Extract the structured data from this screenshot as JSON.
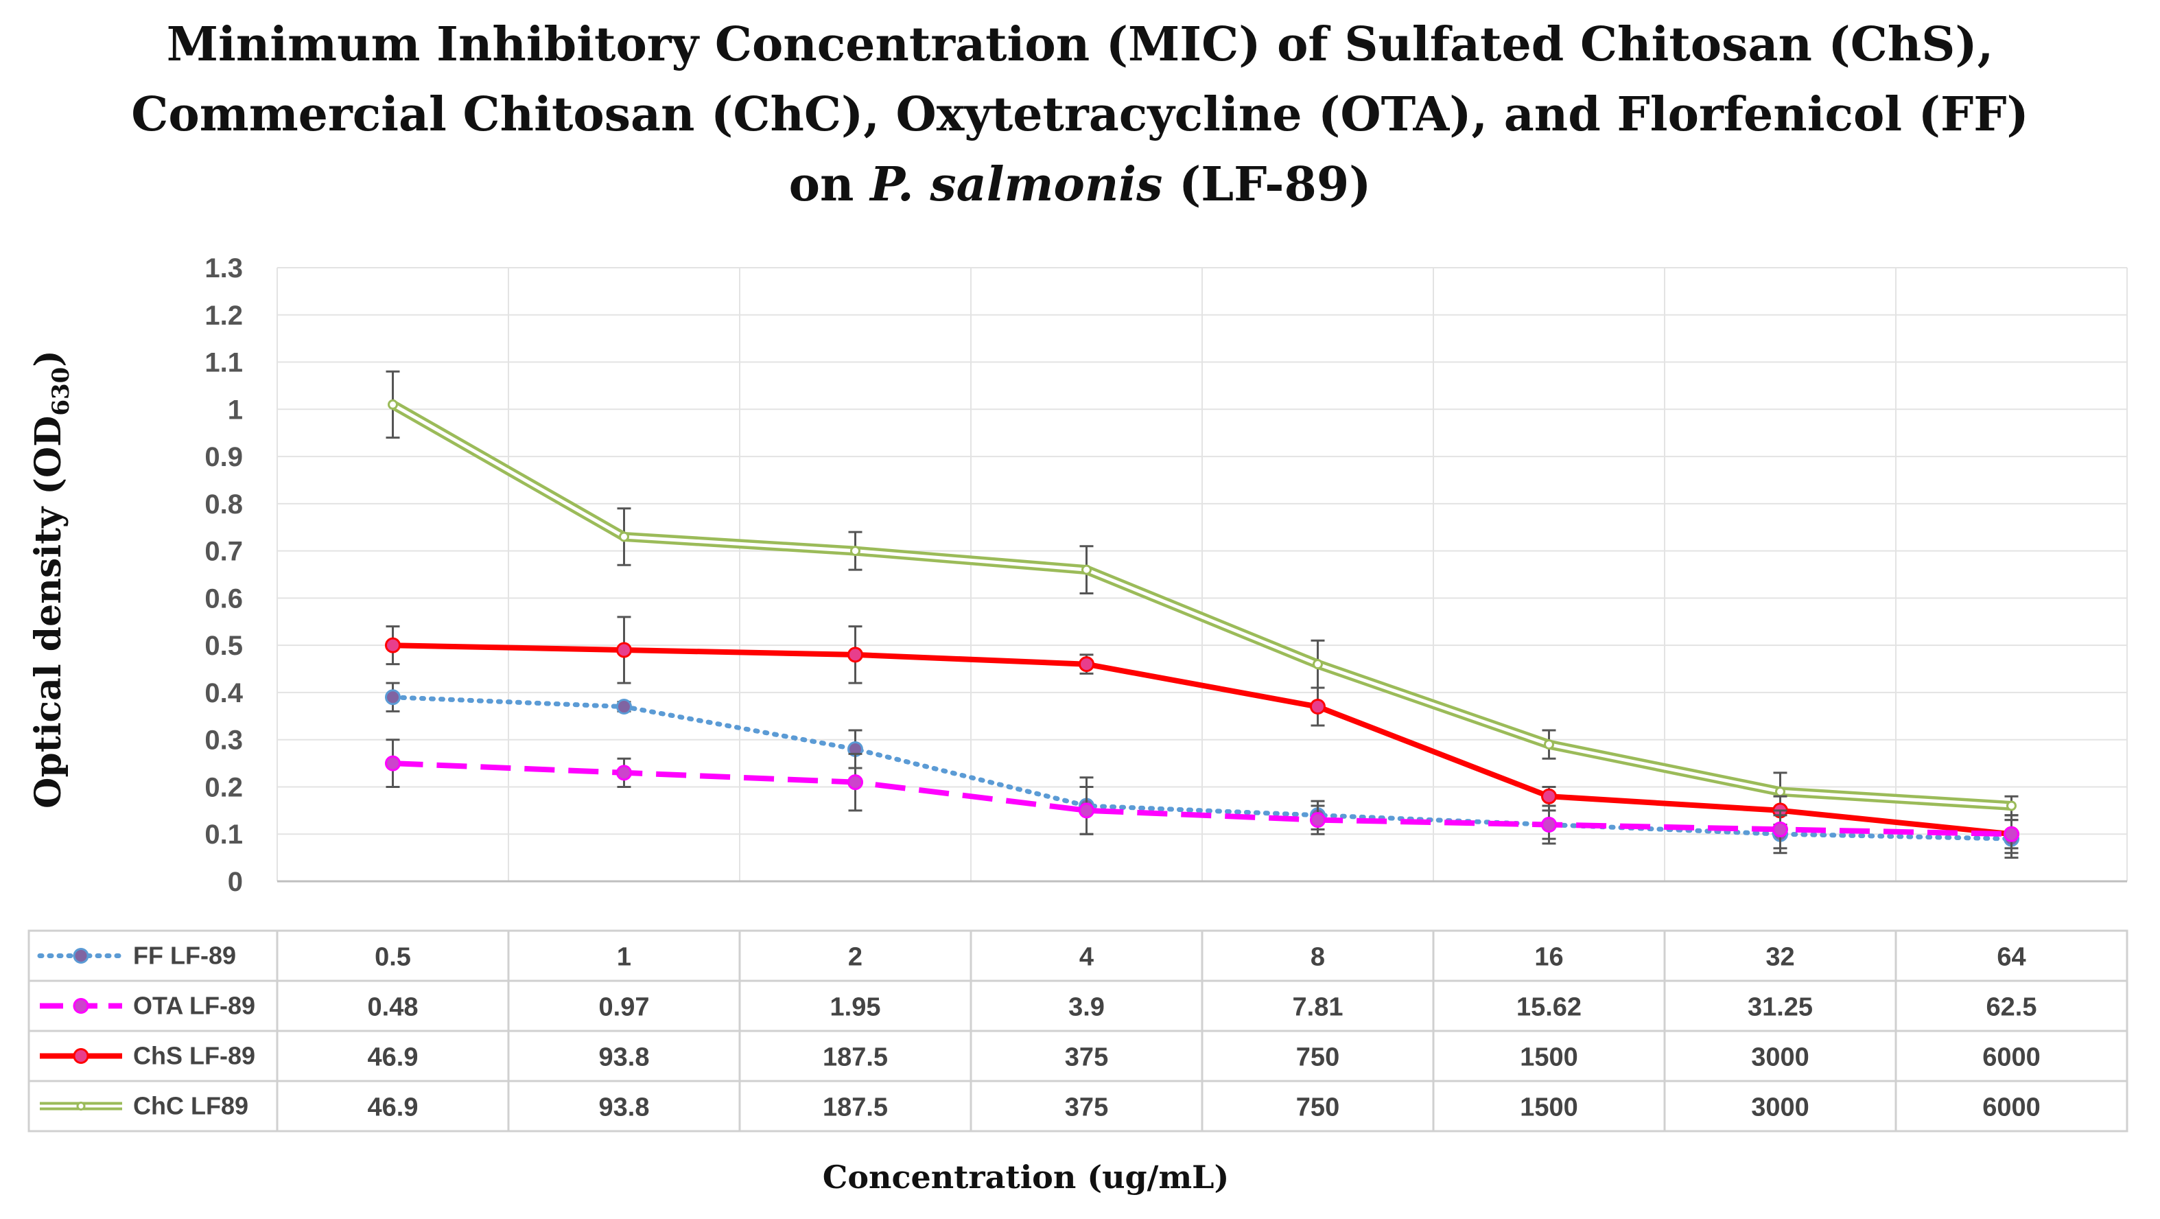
{
  "title_lines": [
    "Minimum Inhibitory Concentration (MIC) of Sulfated Chitosan (ChS),",
    "Commercial Chitosan (ChC), Oxytetracycline (OTA), and Florfenicol (FF)",
    "on ",
    "P. salmonis",
    " (LF-89)"
  ],
  "chart_data": {
    "type": "line",
    "title": "Minimum Inhibitory Concentration (MIC) of Sulfated Chitosan (ChS), Commercial Chitosan (ChC), Oxytetracycline (OTA), and Florfenicol (FF) on P. salmonis (LF-89)",
    "ylabel": "Optical density (OD",
    "ylabel_sub": "630",
    "ylabel_close": ")",
    "xlabel": "Concentration (ug/mL)",
    "ylim": [
      0,
      1.3
    ],
    "yticks": [
      "0",
      "0.1",
      "0.2",
      "0.3",
      "0.4",
      "0.5",
      "0.6",
      "0.7",
      "0.8",
      "0.9",
      "1",
      "1.1",
      "1.2",
      "1.3"
    ],
    "grid": true,
    "legend": "data table below plot",
    "series": [
      {
        "name": "FF LF-89",
        "color": "#5b9bd5",
        "marker_color": "#8064a2",
        "style": "dotted",
        "values": [
          0.39,
          0.37,
          0.28,
          0.16,
          0.14,
          0.12,
          0.1,
          0.09
        ],
        "errors": [
          0.03,
          0.01,
          0.04,
          0.06,
          0.03,
          0.03,
          0.04,
          0.04
        ],
        "table_values": [
          "0.5",
          "1",
          "2",
          "4",
          "8",
          "16",
          "32",
          "64"
        ]
      },
      {
        "name": "OTA LF-89",
        "color": "#ff00ff",
        "marker_color": "#cc44cc",
        "style": "dashed",
        "values": [
          0.25,
          0.23,
          0.21,
          0.15,
          0.13,
          0.12,
          0.11,
          0.1
        ],
        "errors": [
          0.05,
          0.03,
          0.06,
          0.05,
          0.03,
          0.04,
          0.04,
          0.04
        ],
        "table_values": [
          "0.48",
          "0.97",
          "1.95",
          "3.9",
          "7.81",
          "15.62",
          "31.25",
          "62.5"
        ]
      },
      {
        "name": "ChS LF-89",
        "color": "#ff0000",
        "marker_color": "#e83e8c",
        "style": "solid",
        "values": [
          0.5,
          0.49,
          0.48,
          0.46,
          0.37,
          0.18,
          0.15,
          0.1
        ],
        "errors": [
          0.04,
          0.07,
          0.06,
          0.02,
          0.04,
          0.02,
          0.03,
          0.03
        ],
        "table_values": [
          "46.9",
          "93.8",
          "187.5",
          "375",
          "750",
          "1500",
          "3000",
          "6000"
        ]
      },
      {
        "name": "ChC LF89",
        "color": "#9bbb59",
        "marker_color": "#9bbb59",
        "style": "double",
        "values": [
          1.01,
          0.73,
          0.7,
          0.66,
          0.46,
          0.29,
          0.19,
          0.16
        ],
        "errors": [
          0.07,
          0.06,
          0.04,
          0.05,
          0.05,
          0.03,
          0.04,
          0.02
        ],
        "table_values": [
          "46.9",
          "93.8",
          "187.5",
          "375",
          "750",
          "1500",
          "3000",
          "6000"
        ]
      }
    ]
  }
}
